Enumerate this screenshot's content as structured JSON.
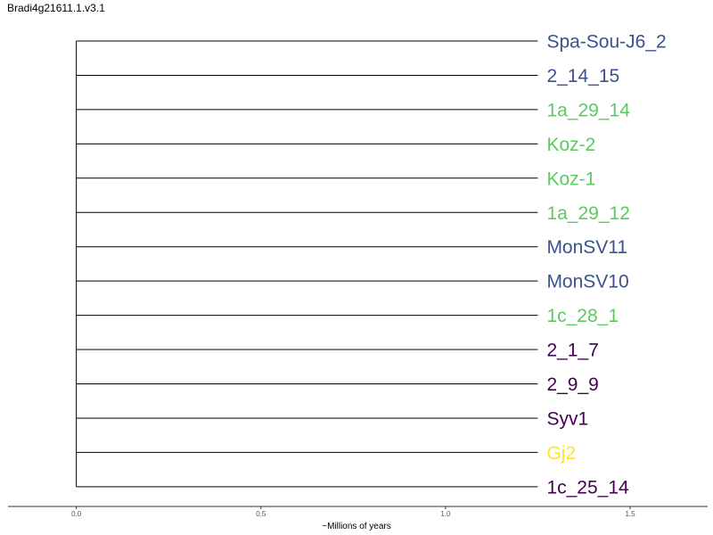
{
  "title": "Bradi4g21611.1.v3.1",
  "axis": {
    "label": "~Millions of years",
    "ticks": [
      0.0,
      0.5,
      1.0,
      1.5
    ],
    "tick_labels": [
      "0.0",
      "0.5",
      "1.0",
      "1.5"
    ],
    "xlim": [
      -0.185,
      1.71
    ]
  },
  "colors": {
    "purple": "#440154",
    "blue": "#3b528b",
    "green": "#5ec962",
    "yellow": "#fde725"
  },
  "root_x": 0.0,
  "leaf_x": 1.25,
  "leaves": [
    {
      "label": "Spa-Sou-J6_2",
      "color": "#3b528b"
    },
    {
      "label": "2_14_15",
      "color": "#3b528b"
    },
    {
      "label": "1a_29_14",
      "color": "#5ec962"
    },
    {
      "label": "Koz-2",
      "color": "#5ec962"
    },
    {
      "label": "Koz-1",
      "color": "#5ec962"
    },
    {
      "label": "1a_29_12",
      "color": "#5ec962"
    },
    {
      "label": "MonSV11",
      "color": "#3b528b"
    },
    {
      "label": "MonSV10",
      "color": "#3b528b"
    },
    {
      "label": "1c_28_1",
      "color": "#5ec962"
    },
    {
      "label": "2_1_7",
      "color": "#440154"
    },
    {
      "label": "2_9_9",
      "color": "#440154"
    },
    {
      "label": "Syv1",
      "color": "#440154"
    },
    {
      "label": "Gj2",
      "color": "#fde725"
    },
    {
      "label": "1c_25_14",
      "color": "#440154"
    }
  ]
}
